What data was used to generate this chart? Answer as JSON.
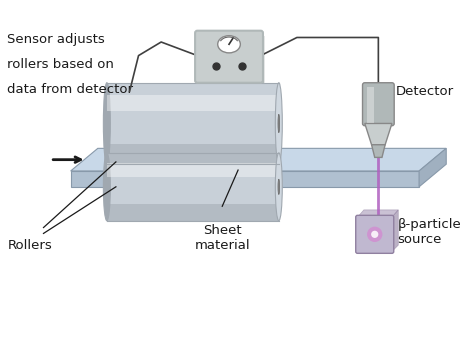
{
  "bg_color": "#ffffff",
  "labels": {
    "sensor_text": [
      "Sensor adjusts",
      "rollers based on",
      "data from detector"
    ],
    "detector": "Detector",
    "rollers": "Rollers",
    "sheet": "Sheet\nmaterial",
    "beta_source": "β-particle\nsource"
  },
  "colors": {
    "roller_body": "#c8d0d8",
    "roller_highlight": "#e8ecf0",
    "roller_shadow": "#a0a8b0",
    "roller_end_face": "#d0d8e0",
    "sheet_top": "#c8d8e8",
    "sheet_side": "#a0b0c0",
    "sheet_front": "#b0c0d0",
    "control_box": "#b0b8b8",
    "control_box_face": "#c8cece",
    "detector_body": "#b0b8b8",
    "detector_tip": "#c8cece",
    "beta_box": "#c0b8d0",
    "beta_glow": "#d090d0",
    "beam_color": "#b060c0",
    "wire_color": "#404040",
    "arrow_color": "#1a1a1a",
    "label_color": "#1a1a1a"
  }
}
